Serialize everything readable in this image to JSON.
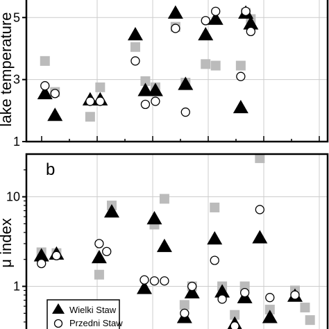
{
  "chart_data": [
    {
      "type": "scatter",
      "panel_label": "",
      "ylabel": "lake temperature",
      "ylim": [
        1,
        5.7
      ],
      "yticks": [
        1,
        3,
        5
      ],
      "xlim": [
        0,
        6
      ],
      "grid": true,
      "series": [
        {
          "name": "",
          "marker": "square",
          "color": "#bbbbbb",
          "x": [
            0.37,
            0.57,
            1.27,
            1.47,
            2.17,
            2.37,
            2.57,
            2.97,
            3.17,
            3.57,
            3.77,
            4.27,
            4.37,
            4.47
          ],
          "y": [
            3.6,
            2.6,
            1.8,
            2.75,
            4.05,
            2.95,
            2.75,
            4.7,
            2.9,
            3.5,
            3.45,
            3.45,
            5.15,
            4.95
          ]
        },
        {
          "name": "Wielki Staw",
          "marker": "triangle",
          "color": "#000000",
          "x": [
            0.37,
            0.57,
            1.27,
            1.47,
            2.17,
            2.37,
            2.57,
            2.97,
            3.17,
            3.57,
            3.77,
            4.27,
            4.37,
            4.47
          ],
          "y": [
            2.55,
            1.85,
            2.35,
            2.35,
            4.45,
            2.65,
            2.65,
            5.15,
            2.85,
            4.45,
            4.95,
            2.1,
            5.15,
            4.8
          ]
        },
        {
          "name": "Przedni Staw",
          "marker": "circle",
          "color": "#000000",
          "x": [
            0.37,
            0.57,
            1.27,
            1.47,
            2.17,
            2.37,
            2.57,
            2.97,
            3.17,
            3.57,
            3.77,
            4.27,
            4.37,
            4.47
          ],
          "y": [
            2.8,
            2.55,
            2.3,
            2.3,
            3.6,
            2.2,
            2.3,
            4.65,
            1.95,
            4.9,
            5.2,
            3.1,
            5.2,
            4.55
          ]
        }
      ]
    },
    {
      "type": "scatter",
      "panel_label": "b",
      "ylabel": "μ index",
      "yscale": "log",
      "ylim": [
        0.3,
        30
      ],
      "yticks": [
        1,
        10
      ],
      "xlim": [
        0,
        6
      ],
      "grid": true,
      "legend_position": "bottom-left",
      "series": [
        {
          "name": "",
          "marker": "square",
          "color": "#bbbbbb",
          "x": [
            0.3,
            0.6,
            1.45,
            1.7,
            2.55,
            2.75,
            3.15,
            3.3,
            3.75,
            3.9,
            4.15,
            4.35,
            4.65,
            4.85,
            5.35,
            5.55,
            5.65
          ],
          "y": [
            2.4,
            2.35,
            1.35,
            8.0,
            4.9,
            9.5,
            0.62,
            1.0,
            7.6,
            1.0,
            0.48,
            1.0,
            27.0,
            0.55,
            0.9,
            0.58,
            0.42
          ]
        },
        {
          "name": "Wielki Staw",
          "marker": "triangle",
          "color": "#000000",
          "x": [
            0.3,
            0.6,
            1.45,
            1.7,
            2.35,
            2.55,
            2.75,
            3.15,
            3.3,
            3.75,
            3.9,
            4.15,
            4.35,
            4.65,
            4.85,
            5.35
          ],
          "y": [
            2.2,
            2.3,
            2.1,
            6.8,
            0.95,
            5.7,
            2.8,
            0.45,
            0.85,
            3.4,
            0.87,
            0.38,
            0.75,
            3.5,
            0.45,
            0.78
          ]
        },
        {
          "name": "Przedni Staw",
          "marker": "circle",
          "color": "#000000",
          "x": [
            0.3,
            0.6,
            1.45,
            1.6,
            2.35,
            2.55,
            2.75,
            3.15,
            3.3,
            3.75,
            3.9,
            4.15,
            4.35,
            4.65,
            4.85,
            5.35
          ],
          "y": [
            1.8,
            2.2,
            3.0,
            2.45,
            1.18,
            1.15,
            1.15,
            0.5,
            1.0,
            1.95,
            0.72,
            0.36,
            0.85,
            7.2,
            0.75,
            0.8
          ]
        }
      ]
    }
  ]
}
